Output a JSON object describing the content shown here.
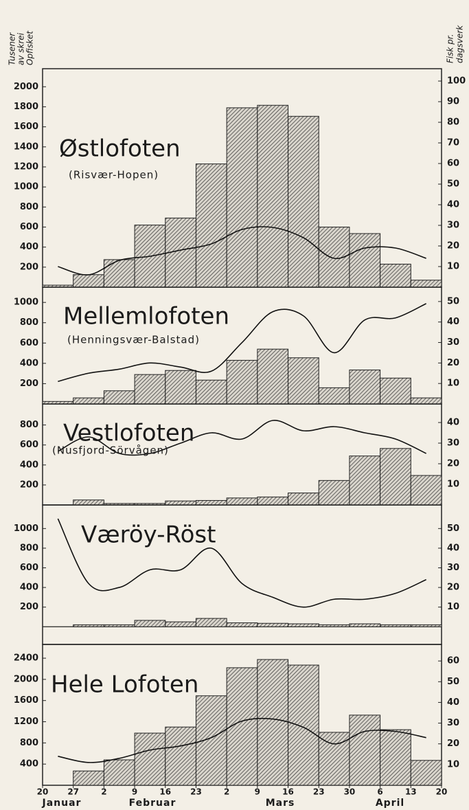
{
  "chart_data": [
    {
      "type": "bar",
      "title": "Østlofoten",
      "subtitle": "(Risvær-Hopen)",
      "values": [
        20,
        125,
        275,
        620,
        690,
        1230,
        1790,
        1815,
        1705,
        600,
        535,
        230,
        70
      ],
      "line": [
        10,
        6,
        13,
        15,
        18,
        21,
        28,
        29,
        24,
        14,
        19,
        19,
        14
      ],
      "ylim": [
        0,
        2180
      ],
      "yticks": [
        200,
        400,
        600,
        800,
        1000,
        1200,
        1400,
        1600,
        1800,
        2000
      ],
      "y2lim": [
        0,
        106
      ],
      "y2ticks": [
        10,
        20,
        30,
        40,
        50,
        60,
        70,
        80,
        90,
        100
      ]
    },
    {
      "type": "bar",
      "title": "Mellemlofoten",
      "subtitle": "(Henningsvær-Balstad)",
      "values": [
        25,
        60,
        130,
        290,
        330,
        235,
        430,
        540,
        455,
        160,
        335,
        255,
        60
      ],
      "line": [
        11,
        15,
        17,
        20,
        18,
        16,
        30,
        45,
        43,
        25,
        41,
        42,
        49
      ],
      "ylim": [
        0,
        1150
      ],
      "yticks": [
        200,
        400,
        600,
        800,
        1000
      ],
      "y2lim": [
        0,
        57
      ],
      "y2ticks": [
        10,
        20,
        30,
        40,
        50
      ]
    },
    {
      "type": "bar",
      "title": "Vestlofoten",
      "subtitle": "(Nusfjord-Sörvågen)",
      "values": [
        0,
        50,
        15,
        15,
        40,
        45,
        70,
        80,
        120,
        245,
        490,
        565,
        295
      ],
      "line": [
        26,
        33,
        25,
        25,
        30,
        35,
        32,
        41,
        36,
        38,
        35,
        32,
        25
      ],
      "ylim": [
        0,
        1010
      ],
      "yticks": [
        200,
        400,
        600,
        800
      ],
      "y2lim": [
        0,
        49
      ],
      "y2ticks": [
        10,
        20,
        30,
        40
      ]
    },
    {
      "type": "bar",
      "title": "Væröy-Röst",
      "values": [
        0,
        20,
        20,
        65,
        50,
        85,
        40,
        35,
        30,
        20,
        30,
        20,
        20
      ],
      "line": [
        55,
        22,
        20,
        29,
        29,
        40,
        22,
        15,
        10,
        14,
        14,
        17,
        24
      ],
      "ylim": [
        -180,
        1240
      ],
      "yticks": [
        200,
        400,
        600,
        800,
        1000
      ],
      "y2lim": [
        -9,
        62
      ],
      "y2ticks": [
        10,
        20,
        30,
        40,
        50
      ]
    },
    {
      "type": "bar",
      "title": "Hele Lofoten",
      "values": [
        0,
        270,
        480,
        985,
        1100,
        1690,
        2220,
        2375,
        2270,
        1000,
        1325,
        1050,
        470
      ],
      "line": [
        14,
        11,
        13,
        17,
        19,
        23,
        31,
        32,
        28,
        20,
        26,
        26,
        23
      ],
      "ylim": [
        0,
        2660
      ],
      "yticks": [
        400,
        800,
        1200,
        1600,
        2000,
        2400
      ],
      "y2lim": [
        0,
        68
      ],
      "y2ticks": [
        10,
        20,
        30,
        40,
        50,
        60
      ]
    }
  ],
  "y_axis_label": [
    "Tusener",
    "av skrei",
    "Opfisket"
  ],
  "y2_axis_label": [
    "Fisk pr.",
    "dagsverk"
  ],
  "x_tick_labels": [
    "20",
    "27",
    "2",
    "9",
    "16",
    "23",
    "2",
    "9",
    "16",
    "23",
    "30",
    "6",
    "13",
    "20"
  ],
  "months": [
    "Januar",
    "Februar",
    "Mars",
    "April"
  ]
}
